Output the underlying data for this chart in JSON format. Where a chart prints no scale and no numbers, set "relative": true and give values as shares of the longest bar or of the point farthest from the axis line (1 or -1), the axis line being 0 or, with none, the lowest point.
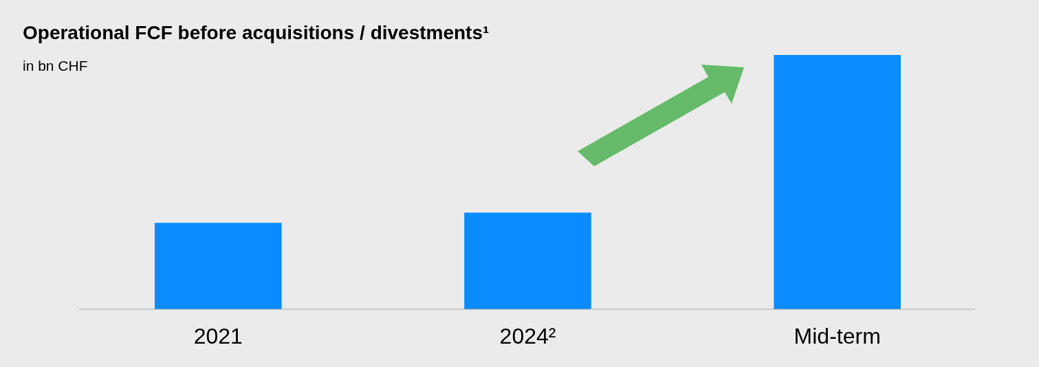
{
  "chart_data": {
    "type": "bar",
    "title": "Operational FCF before acquisitions / divestments¹",
    "subtitle": "in bn CHF",
    "categories": [
      "2021",
      "2024²",
      "Mid-term"
    ],
    "values": [
      0.34,
      0.38,
      1
    ],
    "color": "#0a8cff",
    "relative": true
  }
}
